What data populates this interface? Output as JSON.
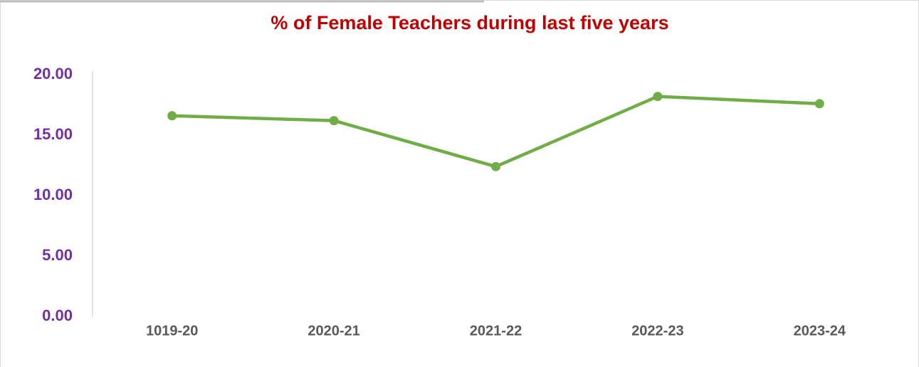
{
  "chart_data": {
    "type": "line",
    "title": "% of Female Teachers during last five years",
    "categories": [
      "1019-20",
      "2020-21",
      "2021-22",
      "2022-23",
      "2023-24"
    ],
    "series": [
      {
        "color": "#70ad47",
        "values": [
          16.6,
          16.2,
          12.4,
          18.2,
          17.6
        ]
      }
    ],
    "ylim": [
      0,
      20
    ],
    "yticks": [
      {
        "value": 0,
        "label": "0.00"
      },
      {
        "value": 5,
        "label": "5.00"
      },
      {
        "value": 10,
        "label": "10.00"
      },
      {
        "value": 15,
        "label": "15.00"
      },
      {
        "value": 20,
        "label": "20.00"
      }
    ],
    "grid": false
  }
}
